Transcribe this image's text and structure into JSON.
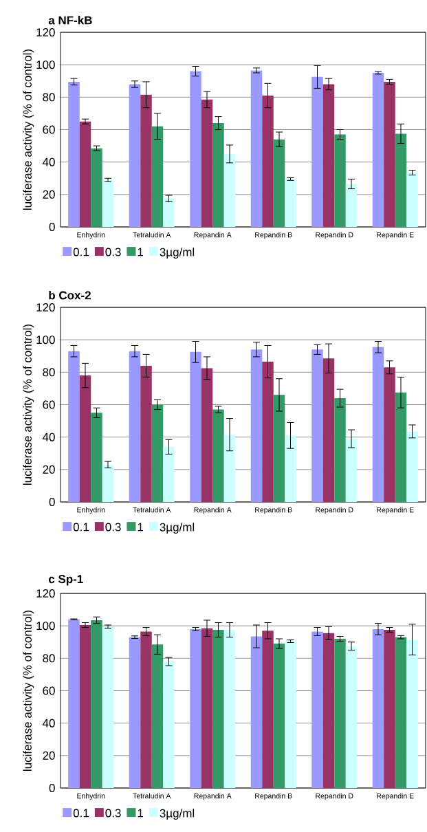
{
  "chart_data": [
    {
      "type": "bar",
      "title": "a  NF-kB",
      "ylabel": "luciferase activity (% of control)",
      "categories": [
        "Enhydrin",
        "Tetraludin A",
        "Repandin A",
        "Repandin B",
        "Repandin D",
        "Repandin E"
      ],
      "ylim": [
        0,
        120
      ],
      "yticks": [
        0,
        20,
        40,
        60,
        80,
        100,
        120
      ],
      "grid": "y",
      "legend": "bottom left",
      "series": [
        {
          "name": "0.1",
          "color": "#9999ff",
          "values": [
            89.5,
            88,
            96,
            96.5,
            92.5,
            95
          ],
          "errors": [
            2,
            2,
            3,
            1.5,
            7,
            0.8
          ]
        },
        {
          "name": "0.3",
          "color": "#993366",
          "values": [
            65,
            81.5,
            78.5,
            81,
            88,
            89.5
          ],
          "errors": [
            1.5,
            8,
            5,
            7.5,
            3.5,
            1.5
          ]
        },
        {
          "name": "1",
          "color": "#339966",
          "values": [
            48.5,
            62,
            64,
            54,
            57,
            57.5
          ],
          "errors": [
            1.5,
            8,
            4,
            4.5,
            3,
            6
          ]
        },
        {
          "name": "3µg/ml",
          "color": "#ccffff",
          "values": [
            29,
            17.5,
            45,
            29.5,
            26.5,
            33.5
          ],
          "errors": [
            1,
            2,
            5.5,
            0.8,
            3,
            1.5
          ]
        }
      ]
    },
    {
      "type": "bar",
      "title": "b  Cox-2",
      "ylabel": "luciferase activity (% of control)",
      "categories": [
        "Enhydrin",
        "Tetraludin A",
        "Repandin A",
        "Repandin B",
        "Repandin D",
        "Repandin E"
      ],
      "ylim": [
        0,
        120
      ],
      "yticks": [
        0,
        20,
        40,
        60,
        80,
        100,
        120
      ],
      "grid": "y",
      "legend": "bottom left",
      "series": [
        {
          "name": "0.1",
          "color": "#9999ff",
          "values": [
            93,
            93,
            92.5,
            94,
            94,
            95.5
          ],
          "errors": [
            3.5,
            3.5,
            6.5,
            4.5,
            3,
            3.5
          ]
        },
        {
          "name": "0.3",
          "color": "#993366",
          "values": [
            78,
            84,
            82.5,
            86.5,
            88.5,
            83
          ],
          "errors": [
            7.5,
            7,
            7,
            10,
            9,
            4
          ]
        },
        {
          "name": "1",
          "color": "#339966",
          "values": [
            55,
            60,
            57,
            66,
            64,
            67.5
          ],
          "errors": [
            3,
            3,
            2,
            10,
            5.5,
            9.5
          ]
        },
        {
          "name": "3µg/ml",
          "color": "#ccffff",
          "values": [
            23,
            34,
            41.5,
            41,
            39,
            43.5
          ],
          "errors": [
            2,
            4.5,
            10,
            8,
            5.5,
            4
          ]
        }
      ]
    },
    {
      "type": "bar",
      "title": "c  Sp-1",
      "ylabel": "luciferase activity (% of control)",
      "categories": [
        "Enhydrin",
        "Tetraludin A",
        "Repandin A",
        "Repandin B",
        "Repandin D",
        "Repandin E"
      ],
      "ylim": [
        0,
        120
      ],
      "yticks": [
        0,
        20,
        40,
        60,
        80,
        100,
        120
      ],
      "grid": "y",
      "legend": "bottom left",
      "series": [
        {
          "name": "0.1",
          "color": "#9999ff",
          "values": [
            104,
            93,
            98,
            93.5,
            96.5,
            98
          ],
          "errors": [
            0.3,
            0.8,
            1,
            7,
            2.5,
            3.5
          ]
        },
        {
          "name": "0.3",
          "color": "#993366",
          "values": [
            100.5,
            96.5,
            98.5,
            97,
            95.5,
            97.5
          ],
          "errors": [
            1.5,
            2.5,
            5,
            5,
            4,
            1.5
          ]
        },
        {
          "name": "1",
          "color": "#339966",
          "values": [
            103.5,
            88.5,
            97.5,
            89,
            92,
            93
          ],
          "errors": [
            2,
            6,
            4.5,
            3,
            1.5,
            1
          ]
        },
        {
          "name": "3µg/ml",
          "color": "#ccffff",
          "values": [
            99.5,
            78,
            97.5,
            90.5,
            87.5,
            91.5
          ],
          "errors": [
            1,
            2.5,
            4.5,
            0.8,
            2.5,
            9.5
          ]
        }
      ]
    }
  ]
}
